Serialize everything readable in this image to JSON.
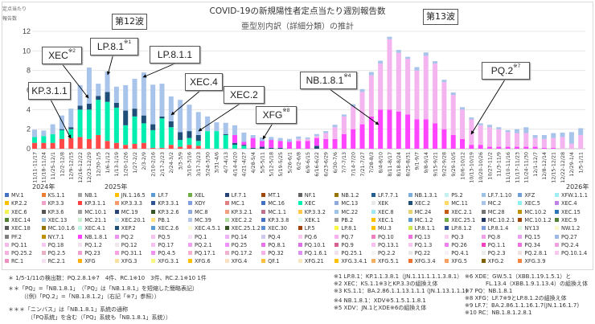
{
  "header": {
    "title_line1": "COVID-19の新規陽性者定点当たり週別報告数",
    "title_line2": "亜型別内訳（詳細分類）の推計",
    "y_unit_line1": "定点当たり",
    "y_unit_line2": "報告数",
    "wave12": "第12波",
    "wave13": "第13波"
  },
  "annotations": [
    {
      "label": "KP.3.1.1",
      "sup": ""
    },
    {
      "label": "XEC",
      "sup": "※2"
    },
    {
      "label": "LP.8.1",
      "sup": "※1"
    },
    {
      "label": "LP.8.1.1",
      "sup": ""
    },
    {
      "label": "XEC.4",
      "sup": ""
    },
    {
      "label": "XEC.2",
      "sup": ""
    },
    {
      "label": "XFG",
      "sup": "※8"
    },
    {
      "label": "NB.1.8.1",
      "sup": "※4"
    },
    {
      "label": "PQ.2",
      "sup": "※7"
    }
  ],
  "years": [
    "2024年",
    "2025年",
    "2026年"
  ],
  "chart_data": {
    "type": "bar",
    "stacked": true,
    "ylim": [
      0,
      12
    ],
    "yticks": [
      0,
      2,
      4,
      6,
      8,
      10,
      12
    ],
    "grid": true,
    "categories": [
      "11/11-11/17",
      "11/18-11/24",
      "11/25-12/1",
      "12/2-12/8",
      "12/9-12/15",
      "12/16-12/22",
      "12/23-12/29",
      "12/30-1/5",
      "1/6-1/12",
      "1/13-1/19",
      "1/20-1/26",
      "1/27-2/2",
      "2/3-2/9",
      "2/10-2/16",
      "2/17-2/23",
      "2/24-3/2",
      "3/3-3/9",
      "3/10-3/16",
      "3/17-3/23",
      "3/24-3/30",
      "3/31-4/6",
      "4/7-4/13",
      "4/14-4/20",
      "4/21-4/27",
      "4/28-5/4",
      "5/5-5/11",
      "5/12-5/18",
      "5/19-5/25",
      "5/26-6/1",
      "6/2-6/8",
      "6/9-6/15",
      "6/16-6/22",
      "6/23-6/29",
      "6/30-7/6",
      "7/7-7/13",
      "7/14-7/20",
      "7/21-7/27",
      "7/28-8/3",
      "8/4-8/10",
      "8/11-8/17",
      "8/18-8/24",
      "8/25-8/31",
      "9/1-9/7",
      "9/8-9/14",
      "9/15-9/21",
      "9/22-9/28",
      "9/29-10/5",
      "10/6-10/12",
      "10/13-10/19",
      "10/20-10/26",
      "10/27-11/2",
      "11/3-11/9",
      "11/10-11/16",
      "11/17-11/23",
      "11/24-11/30",
      "12/1-12/7",
      "12/8-12/14",
      "12/15-12/21",
      "12/22-12/28",
      "12/29-1/4",
      "1/5-1/11"
    ],
    "series": [
      {
        "name": "KP.3.1.1",
        "color": "#ff4848",
        "values": [
          0.6,
          0.6,
          0.6,
          1.0,
          1.1,
          1.2,
          1.0,
          1.4,
          0.8,
          0.6,
          0.4,
          0.5,
          0.6,
          0.1,
          0.1,
          0.4,
          0.2,
          0.4,
          0.3,
          0,
          0,
          0,
          0,
          0,
          0,
          0,
          0,
          0,
          0,
          0,
          0,
          0,
          0,
          0,
          0,
          0,
          0,
          0,
          0,
          0,
          0,
          0,
          0,
          0,
          0,
          0,
          0,
          0,
          0,
          0,
          0,
          0,
          0,
          0,
          0,
          0,
          0,
          0,
          0,
          0,
          0
        ]
      },
      {
        "name": "XEC",
        "color": "#00eeb0",
        "values": [
          0.6,
          0.7,
          0.9,
          0.9,
          0.9,
          2.8,
          3.0,
          3.6,
          4.0,
          3.6,
          2.0,
          2.8,
          2.0,
          1.8,
          3.0,
          1.8,
          0.7,
          0.7,
          0.5,
          1.8,
          1.8,
          1.4,
          0.4,
          0.3,
          0,
          0,
          0,
          0,
          0,
          0,
          0,
          0,
          0,
          0,
          0,
          0,
          0,
          0,
          0,
          0,
          0,
          0,
          0,
          0,
          0,
          0,
          0,
          0,
          0,
          0,
          0,
          0,
          0,
          0,
          0,
          0,
          0,
          0,
          0,
          0,
          0
        ]
      },
      {
        "name": "XEC.2",
        "color": "#1f4e79",
        "values": [
          0,
          0,
          0,
          0.1,
          0.2,
          0.4,
          0.6,
          0.4,
          1.0,
          0.5,
          1.5,
          0.8,
          0.8,
          0.6,
          0.2,
          0.6,
          0.8,
          0.7,
          0.6,
          0,
          0,
          0.1,
          0.2,
          0.1,
          0.1,
          0.2,
          0.1,
          0.1,
          0,
          0,
          0,
          0.3,
          0,
          0,
          0,
          0,
          0,
          0,
          0,
          0,
          0,
          0,
          0,
          0,
          0,
          0,
          0,
          0,
          0,
          0,
          0,
          0,
          0,
          0,
          0,
          0,
          0,
          0,
          0,
          0,
          0
        ]
      },
      {
        "name": "NB.1.8.1",
        "color": "#ff44ff",
        "values": [
          0,
          0,
          0,
          0,
          0,
          0,
          0,
          0,
          0,
          0,
          0,
          0,
          0,
          0,
          0,
          0,
          0,
          0,
          0,
          0,
          0,
          0,
          0.8,
          0.3,
          1.0,
          0.6,
          0.8,
          0.7,
          0.7,
          0.8,
          0.8,
          0.8,
          1.0,
          1.0,
          1.5,
          2.0,
          2.5,
          3.3,
          4.0,
          4.0,
          3.8,
          3.5,
          3.0,
          3.0,
          2.6,
          2.0,
          1.4,
          1.0,
          0.4,
          0.4,
          0.2,
          0.2,
          0.2,
          0.2,
          0.2,
          0.2,
          0.1,
          0.1,
          0,
          0,
          0
        ]
      },
      {
        "color": "#f4b4f0",
        "values": [
          0,
          0,
          0,
          0,
          0,
          0,
          0,
          0,
          0,
          0,
          0,
          0,
          0,
          0,
          0,
          0,
          0,
          0,
          0,
          0,
          0,
          0,
          0,
          0,
          0,
          0,
          0,
          0,
          0,
          0.2,
          0.2,
          0.2,
          0.6,
          1.2,
          1.8,
          2.3,
          3.3,
          4.2,
          4.7,
          7.2,
          6.0,
          5.7,
          5.0,
          6.5,
          6.1,
          4.8,
          4.1,
          3.0,
          2.6,
          2.0,
          2.0,
          1.8,
          1.5,
          1.4,
          1.4,
          0.9,
          0.9,
          1.0,
          1.2,
          0.5,
          1.4
        ]
      },
      {
        "color": "#a9c4eb",
        "values": [
          0.75,
          0.56,
          1.0,
          1.4,
          1.9,
          2.1,
          3.7,
          1.25,
          2.1,
          1.65,
          2.6,
          3.05,
          4.4,
          4.05,
          3.35,
          2.55,
          3.3,
          2.7,
          2.35,
          1.5,
          0.9,
          1.15,
          1.0,
          0.95,
          0.3,
          0.35,
          0.3,
          0.3,
          0.3,
          0.25,
          0.15,
          0.2,
          0.2,
          0.25,
          0.2,
          0.25,
          0.3,
          0.35,
          0.3,
          0.25,
          0.3,
          0.2,
          0.35,
          0.35,
          0.25,
          0.25,
          0.25,
          0.25,
          0.2,
          0.2,
          0.25,
          0.2,
          0.2,
          0.4,
          0.6,
          0.3,
          0.4,
          0.5,
          0.45,
          1.2,
          0.7
        ]
      }
    ]
  },
  "legend": [
    {
      "n": "MV.1",
      "c": "#4472c4"
    },
    {
      "n": "KS.1.1",
      "c": "#ed7d31"
    },
    {
      "n": "NB.1",
      "c": "#a5a5a5"
    },
    {
      "n": "JN.1.16.5",
      "c": "#ffc000"
    },
    {
      "n": "LF.7",
      "c": "#5b9bd5"
    },
    {
      "n": "XEL",
      "c": "#70ad47"
    },
    {
      "n": "LF.7.1",
      "c": "#264478"
    },
    {
      "n": "MT.1",
      "c": "#9e480e"
    },
    {
      "n": "NF.1",
      "c": "#636363"
    },
    {
      "n": "NB.1.2",
      "c": "#997300"
    },
    {
      "n": "LF.7.7.1",
      "c": "#255e91"
    },
    {
      "n": "NB.1.3.1",
      "c": "#7cafdd"
    },
    {
      "n": "PS.2",
      "c": "#c5f0f0"
    },
    {
      "n": "LF.7.1.10",
      "c": "#9dc3e6"
    },
    {
      "n": "XFZ",
      "c": "#6f9fd8"
    },
    {
      "n": "XFW.1.1.1",
      "c": "#a0eef5"
    },
    {
      "n": "KP.2.2",
      "c": "#ffc000"
    },
    {
      "n": "KP.3.3",
      "c": "#f4a0c8"
    },
    {
      "n": "KP.3.1.1",
      "c": "#ff4040"
    },
    {
      "n": "KP.3.3.3",
      "c": "#f79a6a"
    },
    {
      "n": "KP.3.3.1",
      "c": "#2f5597"
    },
    {
      "n": "XDY",
      "c": "#7f9fdf"
    },
    {
      "n": "MC.1",
      "c": "#e08080"
    },
    {
      "n": "MC.16",
      "c": "#4472c4"
    },
    {
      "n": "XEC",
      "c": "#00f0b0"
    },
    {
      "n": "MC.13",
      "c": "#8faadc"
    },
    {
      "n": "XEK",
      "c": "#eaeaea"
    },
    {
      "n": "XEC.2",
      "c": "#1f4e79"
    },
    {
      "n": "MC.11",
      "c": "#ffd966"
    },
    {
      "n": "MC.2",
      "c": "#a9c4eb"
    },
    {
      "n": "XEC.5",
      "c": "#8ff0f0"
    },
    {
      "n": "XEC.4",
      "c": "#c080e8"
    },
    {
      "n": "XEC.6",
      "c": "#f2f250"
    },
    {
      "n": "KP.3.6",
      "c": "#555555"
    },
    {
      "n": "MC.10.1",
      "c": "#a0a0a0"
    },
    {
      "n": "MC.19",
      "c": "#264478"
    },
    {
      "n": "KP.3.2.6",
      "c": "#375623"
    },
    {
      "n": "MC.8",
      "c": "#8faadc"
    },
    {
      "n": "KP.3.2.1",
      "c": "#f4a080"
    },
    {
      "n": "MC.1.1",
      "c": "#c07090"
    },
    {
      "n": "KP.3.3.2",
      "c": "#ffc84a"
    },
    {
      "n": "MC.22",
      "c": "#9dc3e6"
    },
    {
      "n": "XEC.8",
      "c": "#a0e8f0"
    },
    {
      "n": "MC.24",
      "c": "#e6d070"
    },
    {
      "n": "XEC.2.1",
      "c": "#c55a11"
    },
    {
      "n": "MC.28",
      "c": "#737373"
    },
    {
      "n": "MC.10.2",
      "c": "#bf9000"
    },
    {
      "n": "XEC.15",
      "c": "#2e75b6"
    },
    {
      "n": "XEC.14",
      "c": "#548235"
    },
    {
      "n": "XEC.13",
      "c": "#9dc3e6"
    },
    {
      "n": "MC.21.1",
      "c": "#c8f0d0"
    },
    {
      "n": "XEC.20.1",
      "c": "#d0ecf8"
    },
    {
      "n": "PB.1",
      "c": "#ffe080"
    },
    {
      "n": "MC.39",
      "c": "#b4c7e7"
    },
    {
      "n": "XEC.2.2",
      "c": "#b0dca0"
    },
    {
      "n": "KP.3.3.8",
      "c": "#4472c4"
    },
    {
      "n": "XEK.1",
      "c": "#e0f8f0"
    },
    {
      "n": "PB.2",
      "c": "#a0a0a0"
    },
    {
      "n": "XEC.1",
      "c": "#ffc000"
    },
    {
      "n": "MC.1.2",
      "c": "#5b9bd5"
    },
    {
      "n": "XEC.25.1",
      "c": "#70ad47"
    },
    {
      "n": "MC.10.2.1",
      "c": "#203864"
    },
    {
      "n": "MC.10.1.2",
      "c": "#9e480e"
    },
    {
      "n": "XEC.9",
      "c": "#548235"
    },
    {
      "n": "XEC.18",
      "c": "#595959"
    },
    {
      "n": "MC.10.1.6",
      "c": "#997300"
    },
    {
      "n": "XEC.4.1",
      "c": "#b8f8e0"
    },
    {
      "n": "XEP.2",
      "c": "#1f4e79"
    },
    {
      "n": "XEC.2.6",
      "c": "#5b9bd5"
    },
    {
      "n": "XEC.4.5.1",
      "c": "#f8f8d8"
    },
    {
      "n": "XEC.25.1.2",
      "c": "#375623"
    },
    {
      "n": "XEC.30",
      "c": "#5b8fd5"
    },
    {
      "n": "LP.5",
      "c": "#a0420e"
    },
    {
      "n": "LP.8.1",
      "c": "#f8f840"
    },
    {
      "n": "MU.3",
      "c": "#ffc000"
    },
    {
      "n": "LP.8.1.1",
      "c": "#d0e850"
    },
    {
      "n": "LP.8.1.2",
      "c": "#2f5597"
    },
    {
      "n": "LP.8.1.4",
      "c": "#7f9fdf"
    },
    {
      "n": "NY.13",
      "c": "#d8f8e0"
    },
    {
      "n": "NW.1.2",
      "c": "#f8f8c8"
    },
    {
      "n": "PF.2",
      "c": "#808080"
    },
    {
      "n": "NY.7.1",
      "c": "#c09000"
    },
    {
      "n": "NB.1.8.1",
      "c": "#ff40ff"
    },
    {
      "n": "PQ.2",
      "c": "#f090f0"
    },
    {
      "n": "PQ.5",
      "c": "#f8c0f0"
    },
    {
      "n": "PQ.1",
      "c": "#f8e0f8"
    },
    {
      "n": "PQ.14",
      "c": "#f0b0f8"
    },
    {
      "n": "PQ.4",
      "c": "#d0c8f0"
    },
    {
      "n": "PQ.6",
      "c": "#f8c8f0"
    },
    {
      "n": "PQ.7",
      "c": "#f8b0f0"
    },
    {
      "n": "PQ.10",
      "c": "#f080c0"
    },
    {
      "n": "PQ.13",
      "c": "#f070e0"
    },
    {
      "n": "PQ.3",
      "c": "#f8d0f0"
    },
    {
      "n": "PQ.8",
      "c": "#f0a0e8"
    },
    {
      "n": "PQ.15",
      "c": "#e8a0f0"
    },
    {
      "n": "PQ.27",
      "c": "#a0b8e8"
    },
    {
      "n": "PQ.11",
      "c": "#f8b8e8"
    },
    {
      "n": "PQ.18",
      "c": "#f8c8f0"
    },
    {
      "n": "PQ.1.2",
      "c": "#f0e0f0"
    },
    {
      "n": "PQ.12",
      "c": "#eee8ee"
    },
    {
      "n": "PQ.17",
      "c": "#f8c0f0"
    },
    {
      "n": "PQ.2.1",
      "c": "#f0a0f0"
    },
    {
      "n": "PQ.25",
      "c": "#f090f8"
    },
    {
      "n": "PQ.8.1",
      "c": "#e870e8"
    },
    {
      "n": "PQ.10.1",
      "c": "#e070e8"
    },
    {
      "n": "PQ.9",
      "c": "#d86090"
    },
    {
      "n": "PQ.13.1",
      "c": "#f8c0f0"
    },
    {
      "n": "PQ.1.3",
      "c": "#f8c8f0"
    },
    {
      "n": "PQ.26",
      "c": "#f080f0"
    },
    {
      "n": "PQ.1.1",
      "c": "#f040c0"
    },
    {
      "n": "PQ.34",
      "c": "#f070e0"
    },
    {
      "n": "PQ.2.4",
      "c": "#f0a0e0"
    },
    {
      "n": "PQ.25.2",
      "c": "#f8b0e0"
    },
    {
      "n": "PQ.2.5",
      "c": "#e8b0c0"
    },
    {
      "n": "PQ.23",
      "c": "#f0a0d0"
    },
    {
      "n": "PQ.31.1",
      "c": "#f8a0e0"
    },
    {
      "n": "PQ.4.5",
      "c": "#f090f0"
    },
    {
      "n": "PQ.17.1",
      "c": "#f8b0d0"
    },
    {
      "n": "PQ.17.2",
      "c": "#f0b0d0"
    },
    {
      "n": "PQ.32",
      "c": "#f8b0e8"
    },
    {
      "n": "PQ.1.6.1",
      "c": "#e090f0"
    },
    {
      "n": "PQ.25.1",
      "c": "#f0e0f0"
    },
    {
      "n": "PQ.2.2",
      "c": "#f4f4f4"
    },
    {
      "n": "PQ.22",
      "c": "#e8e8e8"
    },
    {
      "n": "PQ.4.1",
      "c": "#f8f0f8"
    },
    {
      "n": "PQ.2.3",
      "c": "#ececec"
    },
    {
      "n": "PQ.2.8.1",
      "c": "#f0e0e0"
    },
    {
      "n": "PQ.10.1.4",
      "c": "#f8c8f0"
    },
    {
      "n": "RC.1",
      "c": "#f090c0"
    },
    {
      "n": "RC.2.1",
      "c": "#f4e0f0"
    },
    {
      "n": "XFG",
      "c": "#ffb000"
    },
    {
      "n": "XFG.3",
      "c": "#f8e0a0"
    },
    {
      "n": "XFG.3.1",
      "c": "#f8f880"
    },
    {
      "n": "XFG.6",
      "c": "#ffc000"
    },
    {
      "n": "XFG.4",
      "c": "#f8e0c0"
    },
    {
      "n": "QF.1",
      "c": "#ffc040"
    },
    {
      "n": "XFG.21",
      "c": "#f8e8c0"
    },
    {
      "n": "XFG.3.4.1",
      "c": "#ffc000"
    },
    {
      "n": "XFG.5.1",
      "c": "#f8b060"
    },
    {
      "n": "XFG.3.4",
      "c": "#f07030"
    },
    {
      "n": "XFG.5",
      "c": "#f8a060"
    },
    {
      "n": "XFG.2",
      "c": "#806000"
    },
    {
      "n": "XFG.3.9",
      "c": "#f88040"
    }
  ],
  "footnotes": {
    "left": [
      "＊ 1/5-1/11の検出数：PQ.2.8.1※7　4件、RC.1※10　3件、RC.2.1※10 1件",
      "＊＊「PQ」=「NB.1.8.1」　（「PQ」は「NB.1.8.1」を短縮した簡略表記）",
      "（(例)「PQ.2」=「NB.1.8.1.2」（右記「※7」参照））",
      "＊＊＊「ニンバス」は「NB.1.8.1」系統の通称",
      "（「PQ系統」を含む（「PQ」系統も「NB.1.8.1」系統））"
    ],
    "mid": [
      "※1 LP.8.1：KP.1.1.3.8.1（JN.1.11.1.1.1.3.8.1）",
      "※2 XEC：KS.1.1※3とKP.3.3の組換え体",
      "※3 KS.1.1：BA.2.86.1.1.13.1.1.1 (JN.1.13.1.1.1)",
      "※4 NB.1.8.1：XDV※5.1.5.1.1.8.1",
      "※5 XDV：JN.1とXDE※6の組換え体"
    ],
    "right": [
      "※6 XDE：GW.5.1（XBB.1.19.1.5.1）と",
      "FL.13.4（XBB.1.9.1.13.4）の組換え体",
      "※7 PQ：NB.1.8.1",
      "※8 XFG：LF.7※9とLP.8.1.2の組換え体",
      "※9 LF.7：BA.2.86.1.1.16.1.7(JN.1.16.1.7)",
      "※10 RC：NB.1.8.1.2.8.1"
    ]
  }
}
